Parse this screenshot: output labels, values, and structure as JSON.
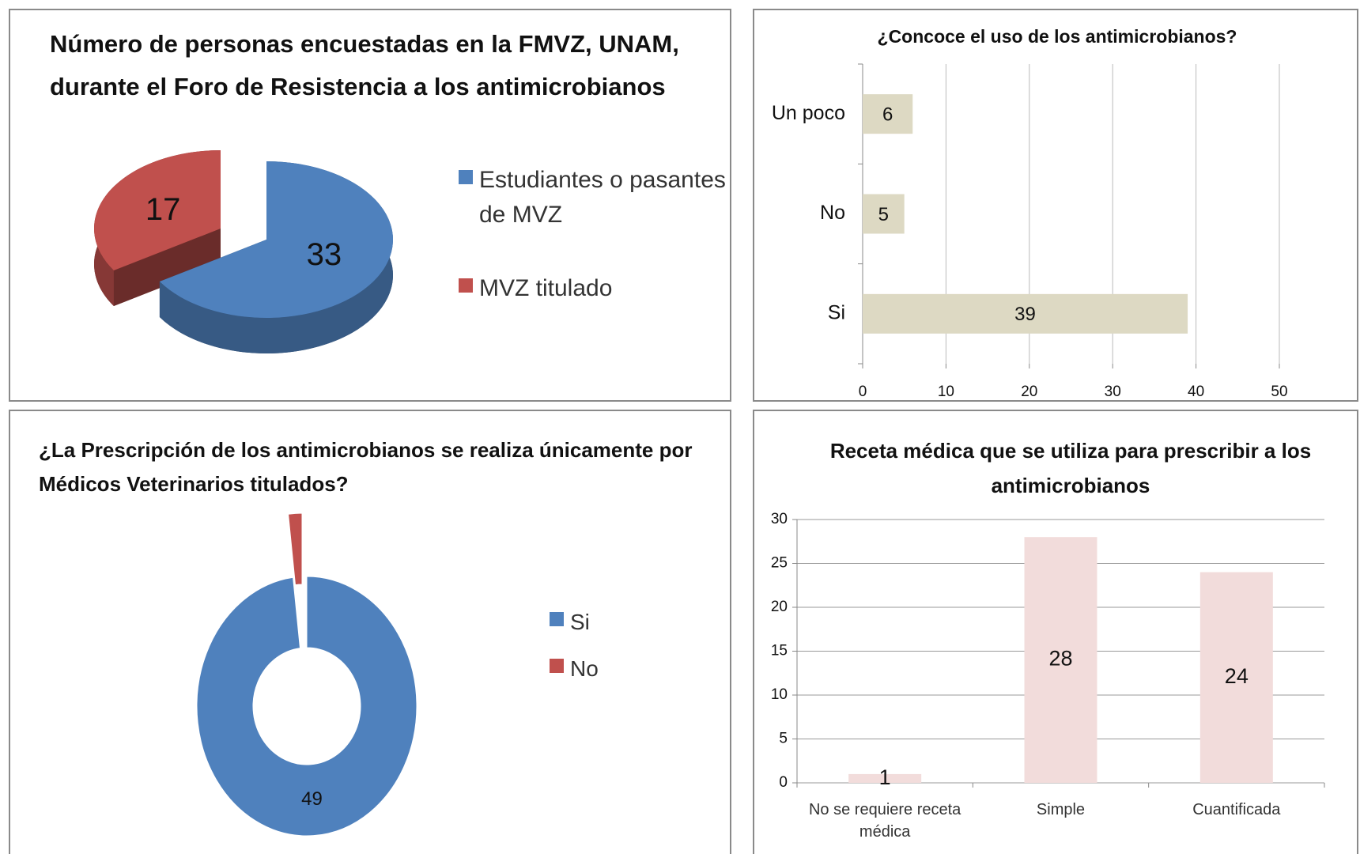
{
  "chart_data": [
    {
      "type": "pie",
      "title": "Número de personas encuestadas en la FMVZ, UNAM, durante el Foro de Resistencia a los antimicrobianos",
      "categories": [
        "Estudiantes o pasantes de MVZ",
        "MVZ titulado"
      ],
      "values": [
        33,
        17
      ],
      "colors": [
        "#4f81bd",
        "#c0504d"
      ],
      "legend": "right"
    },
    {
      "type": "bar",
      "orientation": "horizontal",
      "title": "¿Concoce el uso de los antimicrobianos?",
      "categories": [
        "Un poco",
        "No",
        "Si"
      ],
      "values": [
        6,
        5,
        39
      ],
      "color": "#ddd9c3",
      "xlim": [
        0,
        50
      ],
      "xticks": [
        0,
        10,
        20,
        30,
        40,
        50
      ],
      "grid": true
    },
    {
      "type": "donut",
      "title": "¿La Prescripción de los antimicrobianos  se realiza únicamente por Médicos  Veterinarios titulados?",
      "categories": [
        "Si",
        "No"
      ],
      "values": [
        49,
        1
      ],
      "value_labels": [
        "49",
        null
      ],
      "colors": [
        "#4f81bd",
        "#c0504d"
      ],
      "legend": "right"
    },
    {
      "type": "bar",
      "title": "Receta médica que se utiliza para prescribir a los antimicrobianos",
      "categories": [
        "No se requiere receta médica",
        "Simple",
        "Cuantificada"
      ],
      "values": [
        1,
        28,
        24
      ],
      "color": "#f2dcdb",
      "ylim": [
        0,
        30
      ],
      "yticks": [
        0,
        5,
        10,
        15,
        20,
        25,
        30
      ],
      "grid": true
    }
  ]
}
